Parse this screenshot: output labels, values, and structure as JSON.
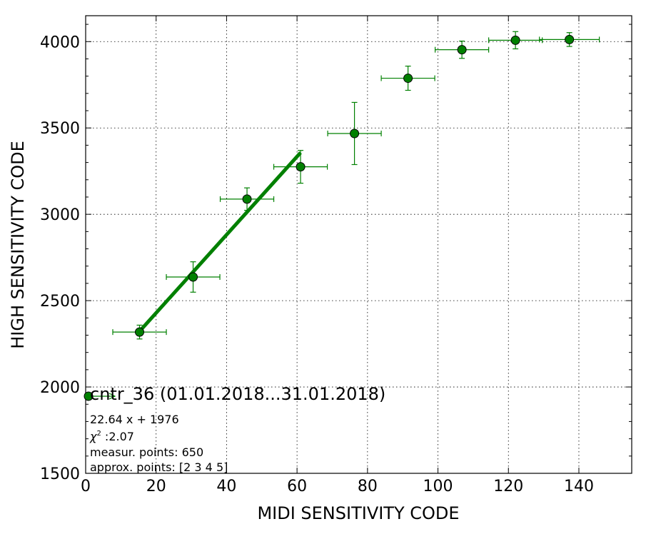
{
  "chart_data": {
    "type": "scatter",
    "xlabel": "MIDI SENSITIVITY CODE",
    "ylabel": "HIGH SENSITIVITY CODE",
    "xlim": [
      0,
      155
    ],
    "ylim": [
      1500,
      4150
    ],
    "xticks": [
      0,
      20,
      40,
      60,
      80,
      100,
      120,
      140
    ],
    "yticks": [
      1500,
      2000,
      2500,
      3000,
      3500,
      4000
    ],
    "grid": true,
    "legend_label": "cntr_36 (01.01.2018...31.01.2018)",
    "legend_position": "lower-left",
    "colors": {
      "series": "#008000",
      "marker_edge": "#000000"
    },
    "series": [
      {
        "name": "cntr_36 (01.01.2018...31.01.2018)",
        "x": [
          15.3,
          30.5,
          45.8,
          61.0,
          76.3,
          91.5,
          106.8,
          122.0,
          137.3
        ],
        "y": [
          2318,
          2637,
          3088,
          3275,
          3468,
          3788,
          3953,
          4008,
          4012
        ],
        "xerr": [
          7.6,
          7.6,
          7.6,
          7.6,
          7.6,
          7.6,
          7.6,
          7.6,
          8.5
        ],
        "yerr": [
          40,
          88,
          65,
          95,
          180,
          70,
          50,
          50,
          40
        ]
      }
    ],
    "fit_line": {
      "slope": 22.64,
      "intercept": 1976,
      "x_range": [
        15.3,
        61.0
      ]
    },
    "annotations": {
      "equation": "22.64 x + 1976",
      "chi2_symbol": "χ",
      "chi2_exponent": "2",
      "chi2_value": " :2.07",
      "measur_points": "measur. points: 650",
      "approx_points": "approx. points: [2 3 4 5]"
    }
  }
}
